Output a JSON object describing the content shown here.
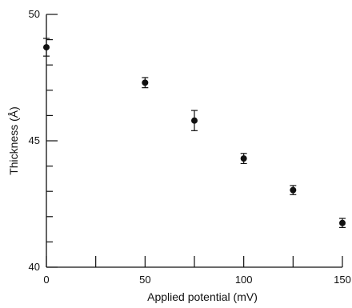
{
  "chart_data": {
    "type": "scatter",
    "title": "",
    "xlabel": "Applied potential (mV)",
    "ylabel": "Thickness (Å)",
    "xlim": [
      0,
      150
    ],
    "ylim": [
      40,
      50
    ],
    "x_ticks": [
      0,
      25,
      50,
      75,
      100,
      125,
      150
    ],
    "x_tick_labels": [
      "0",
      "",
      "50",
      "",
      "100",
      "",
      "150"
    ],
    "y_ticks": [
      40,
      41,
      42,
      43,
      44,
      45,
      46,
      47,
      48,
      49,
      50
    ],
    "y_tick_labels": [
      "40",
      "",
      "",
      "",
      "",
      "45",
      "",
      "",
      "",
      "",
      "50"
    ],
    "grid": false,
    "series": [
      {
        "x": [
          0,
          50,
          75,
          100,
          125,
          150
        ],
        "y": [
          48.7,
          47.3,
          45.8,
          44.3,
          43.05,
          41.75
        ],
        "error": [
          0.35,
          0.2,
          0.4,
          0.2,
          0.18,
          0.18
        ]
      }
    ]
  }
}
